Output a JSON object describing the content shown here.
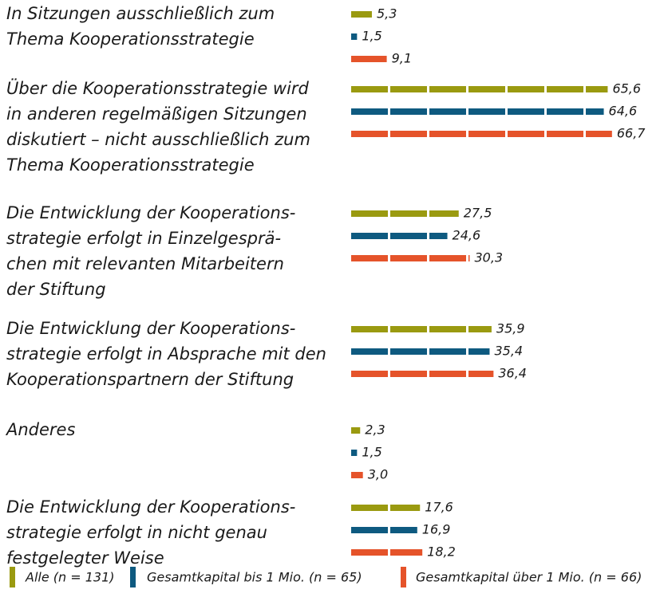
{
  "chart_data": {
    "type": "bar",
    "orientation": "horizontal",
    "categories": [
      "In Sitzungen ausschließlich zum\nThema Kooperationsstrategie",
      "Über die Kooperationsstrategie wird\nin anderen regelmäßigen Sitzungen\ndiskutiert – nicht ausschließlich zum\nThema Kooperationsstrategie",
      "Die Entwicklung der Kooperations-\nstrategie erfolgt in Einzelgesprä-\nchen mit relevanten Mitarbeitern\nder Stiftung",
      "Die Entwicklung der Kooperations-\nstrategie erfolgt in Absprache mit den\nKooperationspartnern der Stiftung",
      "Anderes",
      "Die Entwicklung der Kooperations-\nstrategie erfolgt in nicht genau\nfestgelegter Weise"
    ],
    "series": [
      {
        "name": "Alle (n = 131)",
        "color": "#9a9a10",
        "values": [
          5.3,
          65.6,
          27.5,
          35.9,
          2.3,
          17.6
        ],
        "value_labels": [
          "5,3",
          "65,6",
          "27,5",
          "35,9",
          "2,3",
          "17,6"
        ]
      },
      {
        "name": "Gesamtkapital bis 1 Mio. (n = 65)",
        "color": "#0e5a80",
        "values": [
          1.5,
          64.6,
          24.6,
          35.4,
          1.5,
          16.9
        ],
        "value_labels": [
          "1,5",
          "64,6",
          "24,6",
          "35,4",
          "1,5",
          "16,9"
        ]
      },
      {
        "name": "Gesamtkapital über 1 Mio. (n = 66)",
        "color": "#e5532a",
        "values": [
          9.1,
          66.7,
          30.3,
          36.4,
          3.0,
          18.2
        ],
        "value_labels": [
          "9,1",
          "66,7",
          "30,3",
          "36,4",
          "3,0",
          "18,2"
        ]
      }
    ],
    "legend": "bottom"
  }
}
